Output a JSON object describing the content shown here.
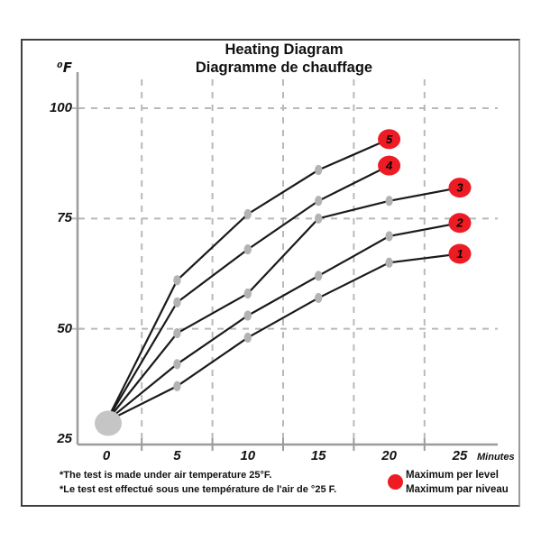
{
  "colors": {
    "red": "#ed1c24",
    "line": "#1a1a1a",
    "grid": "#b9b9b9",
    "axis": "#9b9b9b",
    "point_dot": "#b3b3b3",
    "origin_dot": "#c5c5c5",
    "text": "#111111"
  },
  "chart_data": {
    "type": "line",
    "title": "Heating Diagram",
    "subtitle": "Diagramme de chauffage",
    "xlabel": "Minutes",
    "ylabel": "⁰F",
    "x_ticks": [
      0,
      5,
      10,
      15,
      20,
      25
    ],
    "y_ticks": [
      25,
      50,
      75,
      100
    ],
    "xlim": [
      0,
      25
    ],
    "ylim": [
      25,
      105
    ],
    "grid": "dashed, vertical gridlines offset between ticks",
    "legend_position": "bottom-right",
    "start_point": {
      "x": 0,
      "value": 29,
      "note": "common origin of all levels"
    },
    "series": [
      {
        "name": "Level 1",
        "level": "1",
        "x": [
          0,
          5,
          10,
          15,
          20,
          25
        ],
        "values": [
          29,
          37,
          48,
          57,
          65,
          67
        ],
        "max": {
          "x": 25,
          "value": 67
        }
      },
      {
        "name": "Level 2",
        "level": "2",
        "x": [
          0,
          5,
          10,
          15,
          20,
          25
        ],
        "values": [
          29,
          42,
          53,
          62,
          71,
          74
        ],
        "max": {
          "x": 25,
          "value": 74
        }
      },
      {
        "name": "Level 3",
        "level": "3",
        "x": [
          0,
          5,
          10,
          15,
          20,
          25
        ],
        "values": [
          29,
          49,
          58,
          75,
          79,
          82
        ],
        "max": {
          "x": 25,
          "value": 82
        }
      },
      {
        "name": "Level 4",
        "level": "4",
        "x": [
          0,
          5,
          10,
          15,
          20
        ],
        "values": [
          29,
          56,
          68,
          79,
          87
        ],
        "max": {
          "x": 20,
          "value": 87
        }
      },
      {
        "name": "Level 5",
        "level": "5",
        "x": [
          0,
          5,
          10,
          15,
          20
        ],
        "values": [
          29,
          61,
          76,
          86,
          93
        ],
        "max": {
          "x": 20,
          "value": 93
        }
      }
    ],
    "legend": [
      "Maximum per level",
      "Maximum par niveau"
    ]
  },
  "footnotes": {
    "en": "*The test is made under air temperature 25°F.",
    "fr": "*Le test est effectué sous une température de l'air de °25 F."
  }
}
